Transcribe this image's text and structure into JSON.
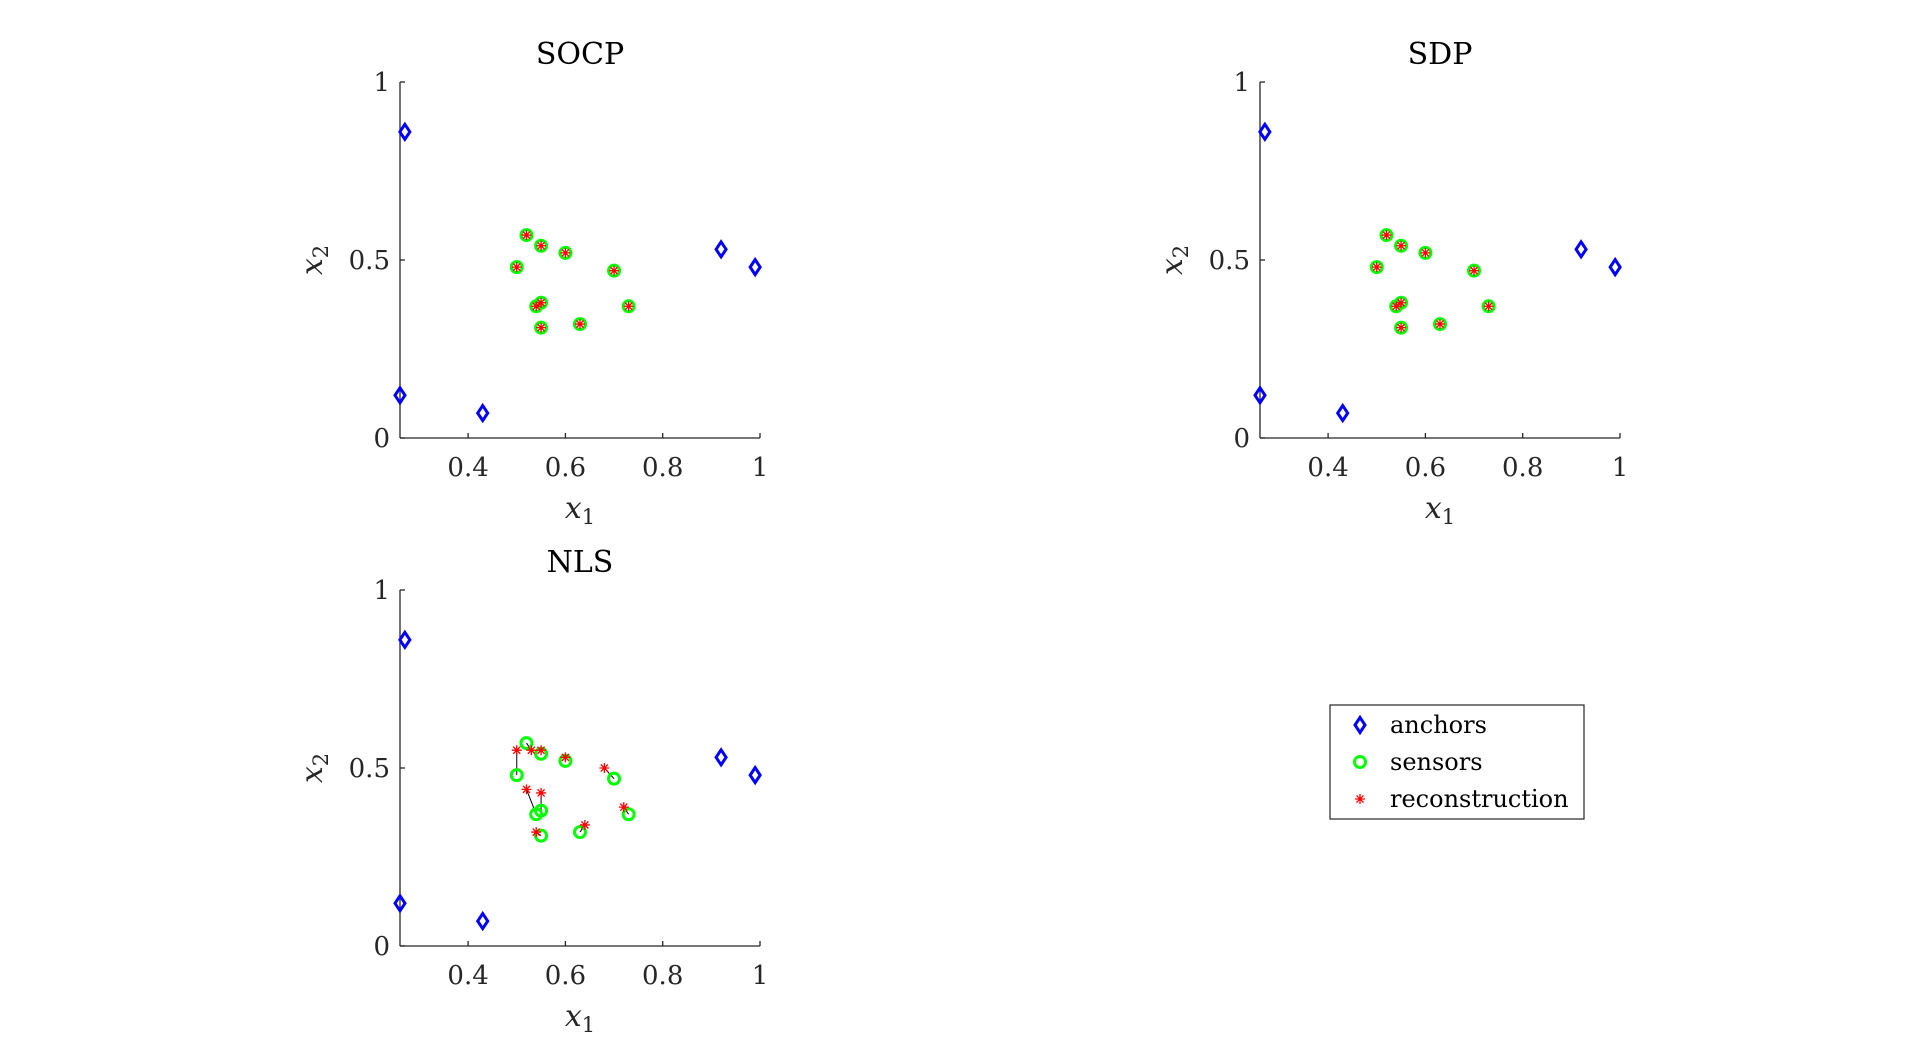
{
  "colors": {
    "anchors": "#0000ff",
    "sensors": "#00ff00",
    "reconstruction": "#ff0000",
    "link": "#000000"
  },
  "legend": {
    "entries": [
      {
        "label": "anchors",
        "marker": "diamond",
        "color": "#0000ff"
      },
      {
        "label": "sensors",
        "marker": "circle",
        "color": "#00ff00"
      },
      {
        "label": "reconstruction",
        "marker": "asterisk",
        "color": "#ff0000"
      }
    ]
  },
  "chart_data": [
    {
      "type": "scatter",
      "title": "SOCP",
      "xlabel": "x_1",
      "ylabel": "x_2",
      "xlim": [
        0.26,
        1.0
      ],
      "ylim": [
        0,
        1
      ],
      "xticks": [
        "0.4",
        "0.6",
        "0.8",
        "1"
      ],
      "yticks": [
        "0",
        "0.5",
        "1"
      ],
      "grid": false,
      "series": [
        {
          "name": "anchors",
          "points": [
            [
              0.27,
              0.86
            ],
            [
              0.26,
              0.12
            ],
            [
              0.43,
              0.07
            ],
            [
              0.92,
              0.53
            ],
            [
              0.99,
              0.48
            ]
          ]
        },
        {
          "name": "sensors",
          "points": [
            [
              0.52,
              0.57
            ],
            [
              0.55,
              0.54
            ],
            [
              0.6,
              0.52
            ],
            [
              0.5,
              0.48
            ],
            [
              0.7,
              0.47
            ],
            [
              0.54,
              0.37
            ],
            [
              0.55,
              0.38
            ],
            [
              0.73,
              0.37
            ],
            [
              0.63,
              0.32
            ],
            [
              0.55,
              0.31
            ]
          ]
        },
        {
          "name": "reconstruction",
          "points": [
            [
              0.52,
              0.57
            ],
            [
              0.55,
              0.54
            ],
            [
              0.6,
              0.52
            ],
            [
              0.5,
              0.48
            ],
            [
              0.7,
              0.47
            ],
            [
              0.54,
              0.37
            ],
            [
              0.55,
              0.38
            ],
            [
              0.73,
              0.37
            ],
            [
              0.63,
              0.32
            ],
            [
              0.55,
              0.31
            ]
          ]
        }
      ]
    },
    {
      "type": "scatter",
      "title": "SDP",
      "xlabel": "x_1",
      "ylabel": "x_2",
      "xlim": [
        0.26,
        1.0
      ],
      "ylim": [
        0,
        1
      ],
      "xticks": [
        "0.4",
        "0.6",
        "0.8",
        "1"
      ],
      "yticks": [
        "0",
        "0.5",
        "1"
      ],
      "grid": false,
      "series": [
        {
          "name": "anchors",
          "points": [
            [
              0.27,
              0.86
            ],
            [
              0.26,
              0.12
            ],
            [
              0.43,
              0.07
            ],
            [
              0.92,
              0.53
            ],
            [
              0.99,
              0.48
            ]
          ]
        },
        {
          "name": "sensors",
          "points": [
            [
              0.52,
              0.57
            ],
            [
              0.55,
              0.54
            ],
            [
              0.6,
              0.52
            ],
            [
              0.5,
              0.48
            ],
            [
              0.7,
              0.47
            ],
            [
              0.54,
              0.37
            ],
            [
              0.55,
              0.38
            ],
            [
              0.73,
              0.37
            ],
            [
              0.63,
              0.32
            ],
            [
              0.55,
              0.31
            ]
          ]
        },
        {
          "name": "reconstruction",
          "points": [
            [
              0.52,
              0.57
            ],
            [
              0.55,
              0.54
            ],
            [
              0.6,
              0.52
            ],
            [
              0.5,
              0.48
            ],
            [
              0.7,
              0.47
            ],
            [
              0.54,
              0.37
            ],
            [
              0.55,
              0.38
            ],
            [
              0.73,
              0.37
            ],
            [
              0.63,
              0.32
            ],
            [
              0.55,
              0.31
            ]
          ]
        }
      ]
    },
    {
      "type": "scatter",
      "title": "NLS",
      "xlabel": "x_1",
      "ylabel": "x_2",
      "xlim": [
        0.26,
        1.0
      ],
      "ylim": [
        0,
        1
      ],
      "xticks": [
        "0.4",
        "0.6",
        "0.8",
        "1"
      ],
      "yticks": [
        "0",
        "0.5",
        "1"
      ],
      "grid": false,
      "series": [
        {
          "name": "anchors",
          "points": [
            [
              0.27,
              0.86
            ],
            [
              0.26,
              0.12
            ],
            [
              0.43,
              0.07
            ],
            [
              0.92,
              0.53
            ],
            [
              0.99,
              0.48
            ]
          ]
        },
        {
          "name": "sensors",
          "points": [
            [
              0.52,
              0.57
            ],
            [
              0.55,
              0.54
            ],
            [
              0.6,
              0.52
            ],
            [
              0.5,
              0.48
            ],
            [
              0.7,
              0.47
            ],
            [
              0.54,
              0.37
            ],
            [
              0.55,
              0.38
            ],
            [
              0.73,
              0.37
            ],
            [
              0.63,
              0.32
            ],
            [
              0.55,
              0.31
            ]
          ]
        },
        {
          "name": "reconstruction",
          "points": [
            [
              0.53,
              0.55
            ],
            [
              0.55,
              0.55
            ],
            [
              0.6,
              0.53
            ],
            [
              0.5,
              0.55
            ],
            [
              0.68,
              0.5
            ],
            [
              0.52,
              0.44
            ],
            [
              0.55,
              0.43
            ],
            [
              0.72,
              0.39
            ],
            [
              0.64,
              0.34
            ],
            [
              0.54,
              0.32
            ]
          ]
        }
      ]
    }
  ]
}
